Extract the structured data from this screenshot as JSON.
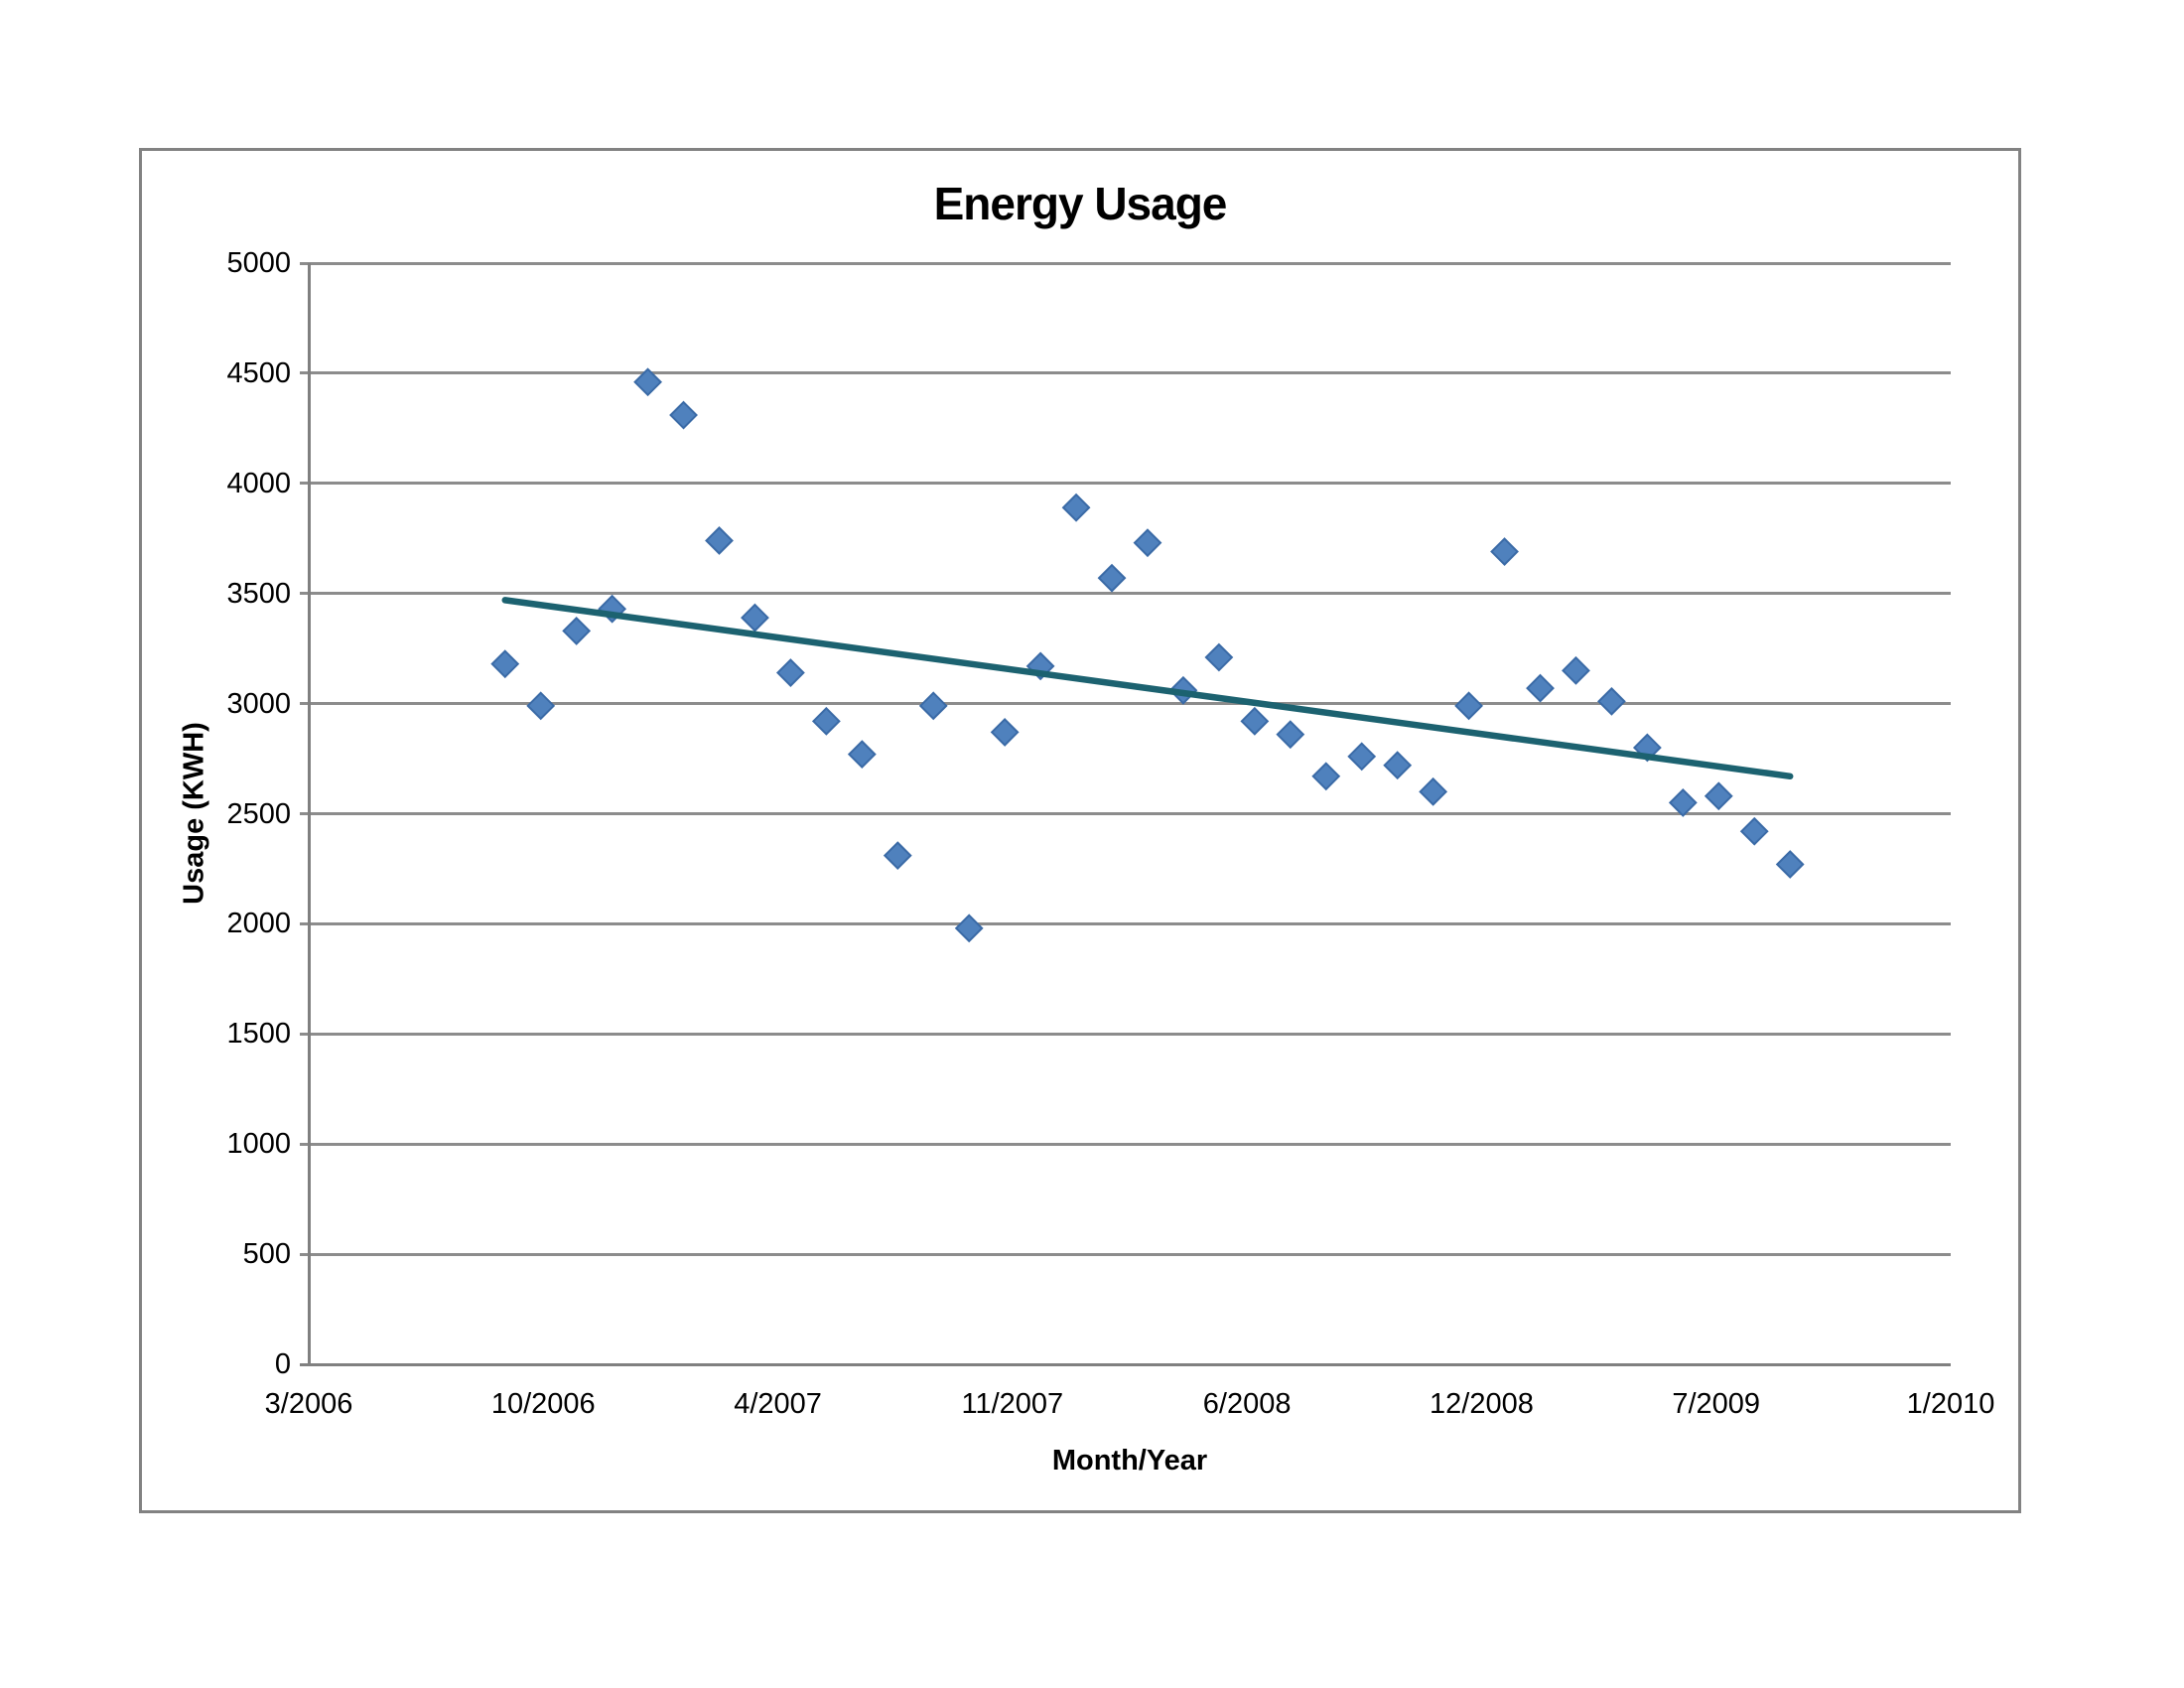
{
  "chart_data": {
    "type": "scatter",
    "title": "Energy Usage",
    "xlabel": "Month/Year",
    "ylabel": "Usage (KWH)",
    "x_tick_labels": [
      "3/2006",
      "10/2006",
      "4/2007",
      "11/2007",
      "6/2008",
      "12/2008",
      "7/2009",
      "1/2010"
    ],
    "x_axis_month_range": {
      "start": "3/2006",
      "end": "1/2010",
      "months": 46
    },
    "y_ticks": [
      0,
      500,
      1000,
      1500,
      2000,
      2500,
      3000,
      3500,
      4000,
      4500,
      5000
    ],
    "ylim": [
      0,
      5000
    ],
    "grid": "horizontal-only",
    "legend_position": "none",
    "series": [
      {
        "name": "Usage (KWH)",
        "marker": "diamond",
        "points": [
          {
            "month": "9/2006",
            "value": 3180
          },
          {
            "month": "10/2006",
            "value": 2990
          },
          {
            "month": "11/2006",
            "value": 3330
          },
          {
            "month": "12/2006",
            "value": 3430
          },
          {
            "month": "1/2007",
            "value": 4460
          },
          {
            "month": "2/2007",
            "value": 4310
          },
          {
            "month": "3/2007",
            "value": 3740
          },
          {
            "month": "4/2007",
            "value": 3390
          },
          {
            "month": "5/2007",
            "value": 3140
          },
          {
            "month": "6/2007",
            "value": 2920
          },
          {
            "month": "7/2007",
            "value": 2770
          },
          {
            "month": "8/2007",
            "value": 2310
          },
          {
            "month": "9/2007",
            "value": 2990
          },
          {
            "month": "10/2007",
            "value": 1980
          },
          {
            "month": "11/2007",
            "value": 2870
          },
          {
            "month": "12/2007",
            "value": 3170
          },
          {
            "month": "1/2008",
            "value": 3890
          },
          {
            "month": "2/2008",
            "value": 3570
          },
          {
            "month": "3/2008",
            "value": 3730
          },
          {
            "month": "4/2008",
            "value": 3060
          },
          {
            "month": "5/2008",
            "value": 3210
          },
          {
            "month": "6/2008",
            "value": 2920
          },
          {
            "month": "7/2008",
            "value": 2860
          },
          {
            "month": "8/2008",
            "value": 2670
          },
          {
            "month": "9/2008",
            "value": 2760
          },
          {
            "month": "10/2008",
            "value": 2720
          },
          {
            "month": "11/2008",
            "value": 2600
          },
          {
            "month": "12/2008",
            "value": 2990
          },
          {
            "month": "1/2009",
            "value": 3690
          },
          {
            "month": "2/2009",
            "value": 3070
          },
          {
            "month": "3/2009",
            "value": 3150
          },
          {
            "month": "4/2009",
            "value": 3010
          },
          {
            "month": "5/2009",
            "value": 2800
          },
          {
            "month": "6/2009",
            "value": 2550
          },
          {
            "month": "7/2009",
            "value": 2580
          },
          {
            "month": "8/2009",
            "value": 2420
          },
          {
            "month": "9/2009",
            "value": 2270
          }
        ]
      }
    ],
    "trendline": {
      "type": "linear",
      "start": {
        "month": "9/2006",
        "value": 3470
      },
      "end": {
        "month": "9/2009",
        "value": 2670
      }
    },
    "colors": {
      "marker_fill": "#4f81bd",
      "marker_stroke": "#3a6aa6",
      "trendline": "#1c6270",
      "gridline": "#8c8c8c",
      "axis_line": "#808080",
      "chart_border": "#828282",
      "text": "#000000"
    }
  }
}
